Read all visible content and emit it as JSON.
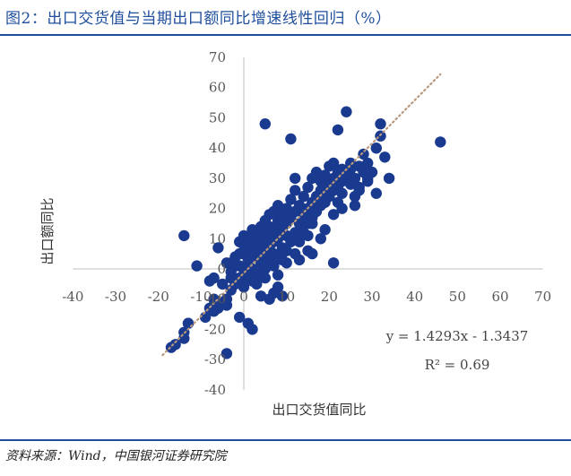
{
  "figure": {
    "title": "图2：出口交货值与当期出口额同比增速线性回归（%）",
    "source": "资料来源：Wind，中国银河证券研究院"
  },
  "colors": {
    "accent": "#1f4e9c",
    "point": "#1a3a8f",
    "trendline": "#b8977a",
    "axis": "#bfbfbf"
  },
  "chart_data": {
    "type": "scatter",
    "xlabel": "出口交货值同比",
    "ylabel": "出口额同比",
    "xlim": [
      -40,
      70
    ],
    "ylim": [
      -40,
      70
    ],
    "xticks": [
      "-40",
      "-30",
      "-20",
      "-10",
      "0",
      "10",
      "20",
      "30",
      "40",
      "50",
      "60",
      "70"
    ],
    "yticks": [
      "70",
      "60",
      "50",
      "40",
      "30",
      "20",
      "10",
      "0",
      "-10",
      "-20",
      "-30",
      "-40"
    ],
    "grid": false,
    "legend": "none",
    "trendline": {
      "equation": "y = 1.4293x - 1.3437",
      "r2_label": "R² = 0.69",
      "slope": 1.4293,
      "intercept": -1.3437,
      "x_range": [
        -19,
        46
      ]
    },
    "series": [
      {
        "points": [
          [
            -17,
            -26
          ],
          [
            -16,
            -25
          ],
          [
            -14,
            -23
          ],
          [
            -14,
            -21
          ],
          [
            -13,
            -18
          ],
          [
            -13,
            -18
          ],
          [
            -9,
            -16
          ],
          [
            -8,
            -13
          ],
          [
            -7,
            -14
          ],
          [
            -7,
            -12
          ],
          [
            -7,
            -10
          ],
          [
            -6,
            -13
          ],
          [
            -5,
            -11
          ],
          [
            -4,
            -12
          ],
          [
            -4,
            -10
          ],
          [
            -8,
            -4
          ],
          [
            -5,
            -5
          ],
          [
            -3,
            -3
          ],
          [
            -3,
            -7
          ],
          [
            -4,
            2
          ],
          [
            -3,
            2
          ],
          [
            -2,
            1
          ],
          [
            -3,
            -1
          ],
          [
            -2,
            -5
          ],
          [
            -2,
            4
          ],
          [
            -1,
            5
          ],
          [
            -1,
            1
          ],
          [
            -1,
            -3
          ],
          [
            -1,
            9
          ],
          [
            0,
            5
          ],
          [
            0,
            8
          ],
          [
            0,
            11
          ],
          [
            0,
            0
          ],
          [
            0,
            -2
          ],
          [
            0,
            -6
          ],
          [
            1,
            3
          ],
          [
            1,
            6
          ],
          [
            1,
            10
          ],
          [
            1,
            -3
          ],
          [
            2,
            13
          ],
          [
            2,
            7
          ],
          [
            2,
            0
          ],
          [
            2,
            -4
          ],
          [
            3,
            4
          ],
          [
            3,
            9
          ],
          [
            3,
            12
          ],
          [
            3,
            -2
          ],
          [
            3,
            -5
          ],
          [
            4,
            6
          ],
          [
            4,
            14
          ],
          [
            4,
            2
          ],
          [
            4,
            10
          ],
          [
            4,
            -1
          ],
          [
            5,
            16
          ],
          [
            5,
            8
          ],
          [
            5,
            4
          ],
          [
            5,
            12
          ],
          [
            5,
            0
          ],
          [
            5,
            -3
          ],
          [
            6,
            11
          ],
          [
            6,
            18
          ],
          [
            6,
            7
          ],
          [
            6,
            3
          ],
          [
            6,
            14
          ],
          [
            7,
            13
          ],
          [
            7,
            5
          ],
          [
            7,
            9
          ],
          [
            7,
            1
          ],
          [
            7,
            19
          ],
          [
            8,
            16
          ],
          [
            8,
            10
          ],
          [
            8,
            4
          ],
          [
            8,
            21
          ],
          [
            8,
            -2
          ],
          [
            9,
            13
          ],
          [
            9,
            7
          ],
          [
            9,
            18
          ],
          [
            9,
            3
          ],
          [
            10,
            11
          ],
          [
            10,
            20
          ],
          [
            10,
            6
          ],
          [
            10,
            15
          ],
          [
            11,
            9
          ],
          [
            11,
            17
          ],
          [
            11,
            23
          ],
          [
            12,
            12
          ],
          [
            12,
            19
          ],
          [
            12,
            26
          ],
          [
            12,
            5
          ],
          [
            13,
            15
          ],
          [
            13,
            21
          ],
          [
            13,
            9
          ],
          [
            14,
            18
          ],
          [
            14,
            24
          ],
          [
            14,
            12
          ],
          [
            15,
            20
          ],
          [
            15,
            27
          ],
          [
            15,
            15
          ],
          [
            15,
            6
          ],
          [
            16,
            22
          ],
          [
            16,
            30
          ],
          [
            16,
            17
          ],
          [
            16,
            5
          ],
          [
            17,
            24
          ],
          [
            17,
            19
          ],
          [
            17,
            32
          ],
          [
            18,
            26
          ],
          [
            18,
            21
          ],
          [
            18,
            29
          ],
          [
            19,
            22
          ],
          [
            19,
            25
          ],
          [
            19,
            31
          ],
          [
            20,
            28
          ],
          [
            20,
            24
          ],
          [
            20,
            34
          ],
          [
            21,
            30
          ],
          [
            21,
            26
          ],
          [
            21,
            35
          ],
          [
            21,
            18
          ],
          [
            22,
            27
          ],
          [
            22,
            32
          ],
          [
            22,
            22
          ],
          [
            23,
            29
          ],
          [
            23,
            33
          ],
          [
            23,
            25
          ],
          [
            24,
            31
          ],
          [
            25,
            35
          ],
          [
            25,
            28
          ],
          [
            26,
            30
          ],
          [
            26,
            24
          ],
          [
            27,
            34
          ],
          [
            27,
            27
          ],
          [
            28,
            38
          ],
          [
            28,
            32
          ],
          [
            29,
            35
          ],
          [
            29,
            29
          ],
          [
            30,
            32
          ],
          [
            31,
            40
          ],
          [
            32,
            44
          ],
          [
            33,
            37
          ],
          [
            34,
            30
          ],
          [
            -14,
            11
          ],
          [
            -7,
            -3
          ],
          [
            -1,
            -16
          ],
          [
            1,
            -18
          ],
          [
            2,
            -20
          ],
          [
            4,
            -9
          ],
          [
            7,
            -8
          ],
          [
            8,
            -6
          ],
          [
            13,
            3
          ],
          [
            16,
            15
          ],
          [
            19,
            13
          ],
          [
            21,
            2
          ],
          [
            11,
            43
          ],
          [
            5,
            48
          ],
          [
            22,
            46
          ],
          [
            24,
            52
          ],
          [
            32,
            48
          ],
          [
            46,
            42
          ],
          [
            -4,
            -28
          ],
          [
            27,
            26
          ],
          [
            31,
            25
          ],
          [
            10,
            2
          ],
          [
            12,
            30
          ],
          [
            -11,
            1
          ],
          [
            -6,
            7
          ],
          [
            6,
            -10
          ],
          [
            9,
            -9
          ],
          [
            15,
            11
          ],
          [
            18,
            10
          ],
          [
            23,
            20
          ],
          [
            26,
            21
          ],
          [
            29,
            30
          ],
          [
            25,
            33
          ]
        ]
      }
    ]
  }
}
